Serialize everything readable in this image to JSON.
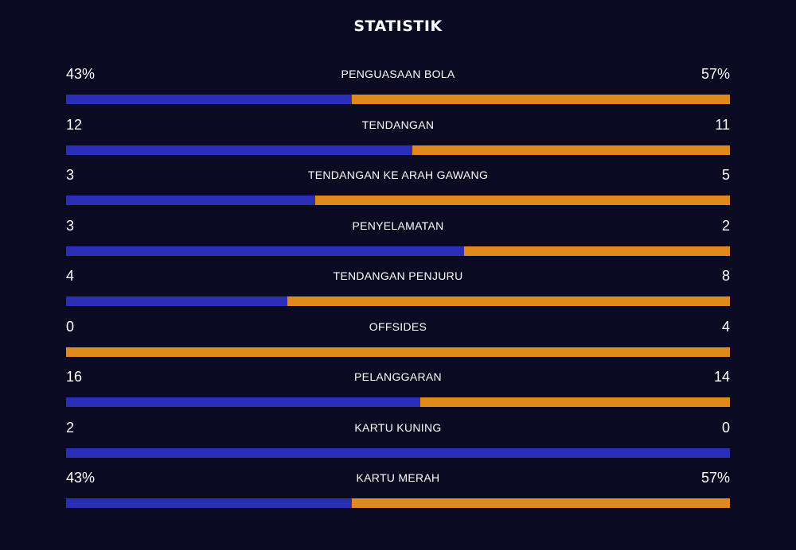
{
  "title": "STATISTIK",
  "colors": {
    "background": "#0a0a22",
    "home": "#2a2fb8",
    "away": "#e08a1e"
  },
  "stats": [
    {
      "label": "PENGUASAAN BOLA",
      "home_text": "43%",
      "away_text": "57%",
      "home_share": 0.43
    },
    {
      "label": "TENDANGAN",
      "home_text": "12",
      "away_text": "11",
      "home_share": 0.522
    },
    {
      "label": "TENDANGAN KE ARAH GAWANG",
      "home_text": "3",
      "away_text": "5",
      "home_share": 0.375
    },
    {
      "label": "PENYELAMATAN",
      "home_text": "3",
      "away_text": "2",
      "home_share": 0.6
    },
    {
      "label": "TENDANGAN PENJURU",
      "home_text": "4",
      "away_text": "8",
      "home_share": 0.333
    },
    {
      "label": "OFFSIDES",
      "home_text": "0",
      "away_text": "4",
      "home_share": 0
    },
    {
      "label": "PELANGGARAN",
      "home_text": "16",
      "away_text": "14",
      "home_share": 0.533
    },
    {
      "label": "KARTU KUNING",
      "home_text": "2",
      "away_text": "0",
      "home_share": 1
    },
    {
      "label": "KARTU MERAH",
      "home_text": "43%",
      "away_text": "57%",
      "home_share": 0.43
    }
  ]
}
